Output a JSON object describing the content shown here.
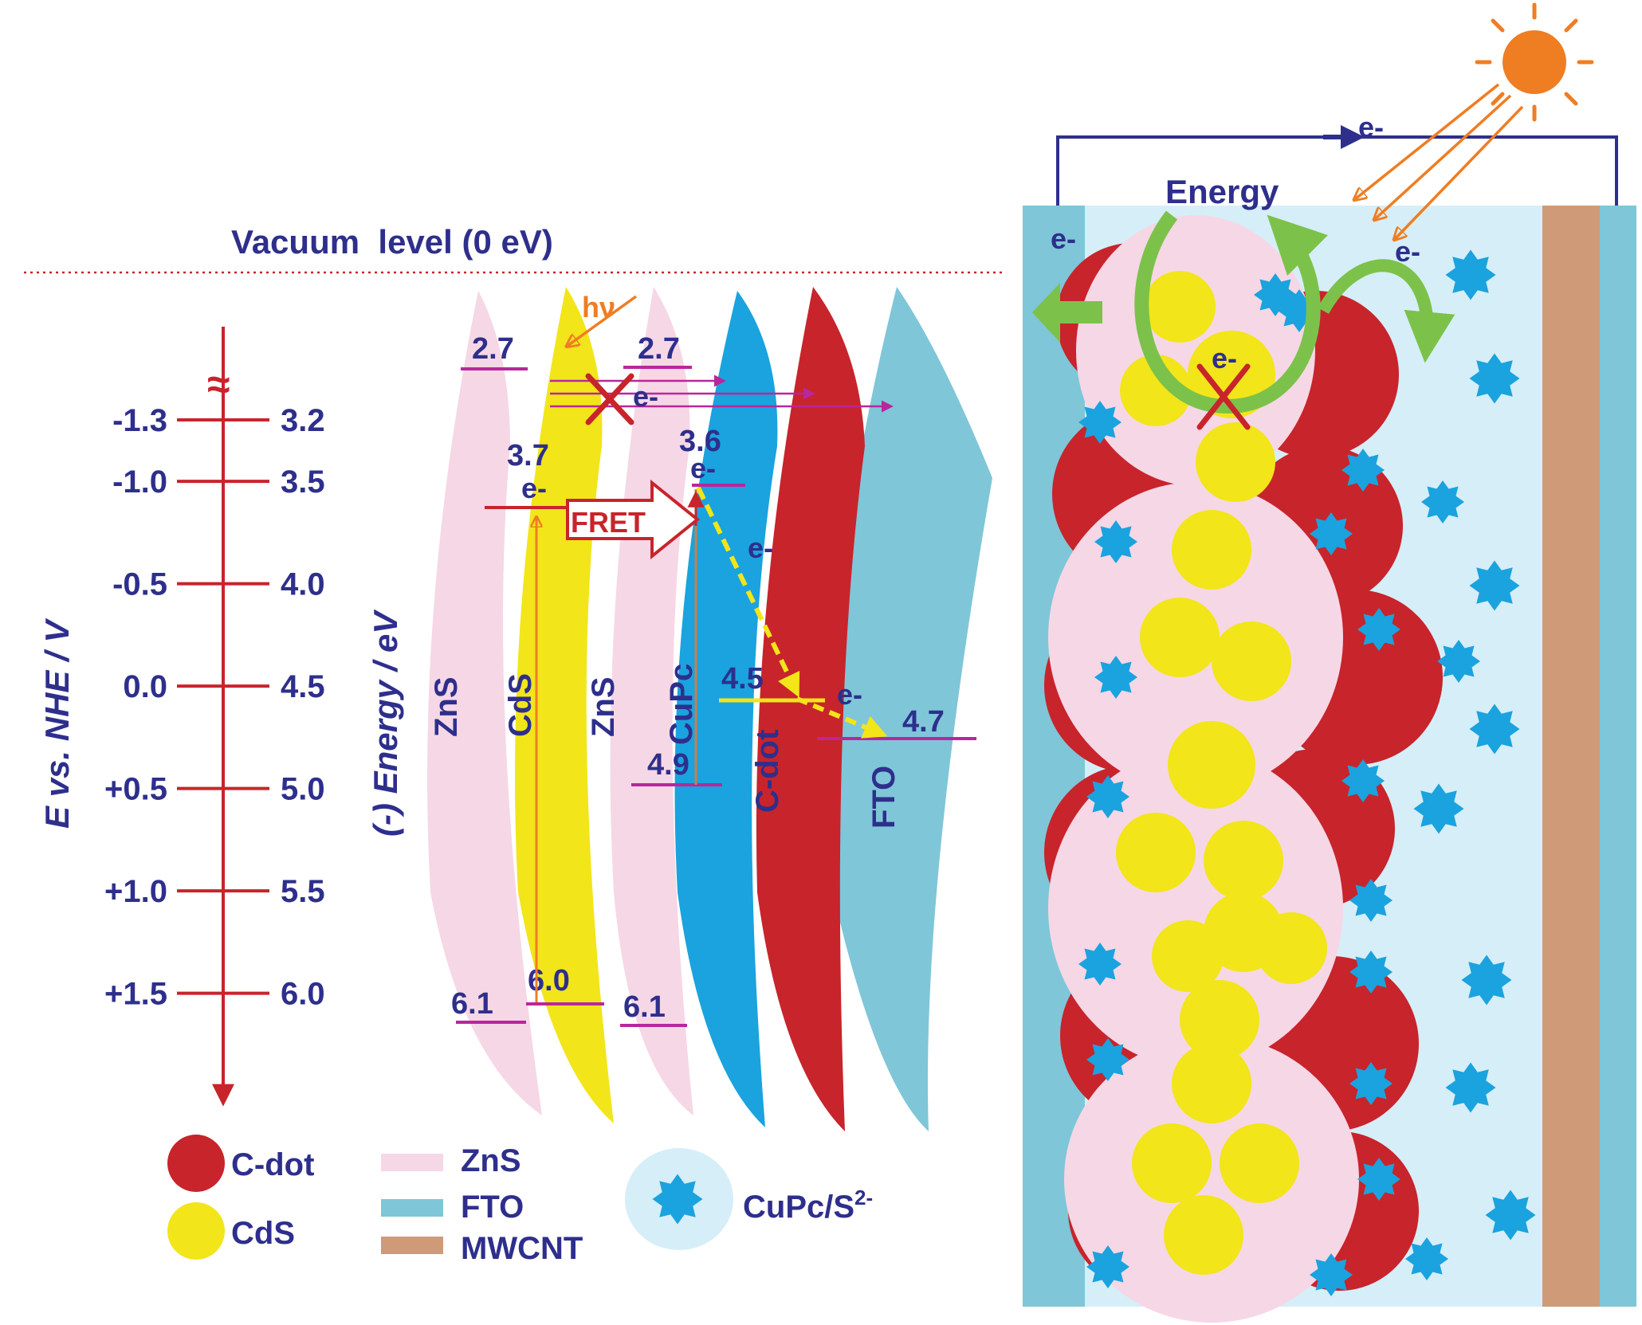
{
  "header": {
    "vacuum_level": "Vacuum  level (0 eV)"
  },
  "axis": {
    "left_title": "E vs. NHE / V",
    "right_title": "(-) Energy / eV",
    "break_mark": "≈",
    "ticks": [
      {
        "nhe": "-1.3",
        "energy": "3.2"
      },
      {
        "nhe": "-1.0",
        "energy": "3.5"
      },
      {
        "nhe": "-0.5",
        "energy": "4.0"
      },
      {
        "nhe": "0.0",
        "energy": "4.5"
      },
      {
        "nhe": "+0.5",
        "energy": "5.0"
      },
      {
        "nhe": "+1.0",
        "energy": "5.5"
      },
      {
        "nhe": "+1.5",
        "energy": "6.0"
      }
    ]
  },
  "bands": {
    "zns_left": "ZnS",
    "cds": "CdS",
    "zns_right": "ZnS",
    "cupc": "CuPc",
    "cdot": "C-dot",
    "fto": "FTO"
  },
  "levels": {
    "zns_cb_left": "2.7",
    "zns_cb_right": "2.7",
    "cds_cb": "3.7",
    "cupc_lumo": "3.6",
    "cdot_level": "4.5",
    "fto_level": "4.7",
    "cupc_homo": "4.9",
    "cds_vb": "6.0",
    "zns_vb_left": "6.1",
    "zns_vb_right": "6.1"
  },
  "annotations": {
    "hv": "hν",
    "fret": "FRET",
    "electron": "e-",
    "energy": "Energy"
  },
  "legend": {
    "cdot": "C-dot",
    "cds": "CdS",
    "zns": "ZnS",
    "fto": "FTO",
    "mwcnt": "MWCNT",
    "cupc_s": "CuPc/S",
    "cupc_s_sup": "2-"
  },
  "colors": {
    "zns": "#f6d7e6",
    "cds": "#f2e51a",
    "cupc": "#1aa3de",
    "cdot": "#c8242b",
    "fto": "#7fc6d8",
    "mwcnt": "#cf9a78",
    "electrolyte": "#d6eef8",
    "axis": "#c8242b",
    "text": "#2e2f8c",
    "level_line": "#b8279b",
    "photon": "#ef7d22",
    "transfer_arrow": "#f2e51a",
    "energy_arrow": "#7cc24a"
  }
}
